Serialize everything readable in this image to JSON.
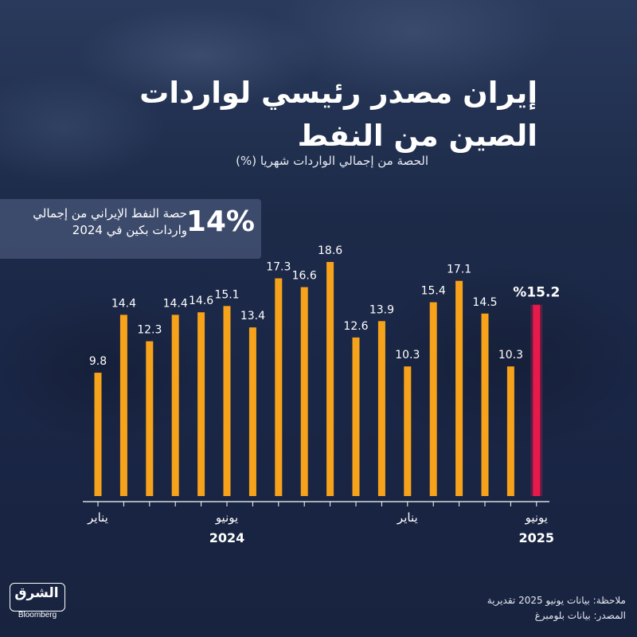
{
  "title_line1": "إيران مصدر رئيسي لواردات",
  "title_line2": "الصين من النفط",
  "subtitle": "الحصة من إجمالي الواردات شهريا (%)",
  "callout": {
    "value": "14%",
    "text_line1": "حصة النفط الإيراني من إجمالي",
    "text_line2": "واردات بكين في 2024"
  },
  "chart_data": {
    "type": "bar",
    "categories": [
      "2024-01",
      "2024-02",
      "2024-03",
      "2024-04",
      "2024-05",
      "2024-06",
      "2024-07",
      "2024-08",
      "2024-09",
      "2024-10",
      "2024-11",
      "2024-12",
      "2025-01",
      "2025-02",
      "2025-03",
      "2025-04",
      "2025-05",
      "2025-06"
    ],
    "values": [
      9.8,
      14.4,
      12.3,
      14.4,
      14.6,
      15.1,
      13.4,
      17.3,
      16.6,
      18.6,
      12.6,
      13.9,
      10.3,
      15.4,
      17.1,
      14.5,
      10.3,
      15.2
    ],
    "value_labels": [
      "9.8",
      "14.4",
      "12.3",
      "14.4",
      "14.6",
      "15.1",
      "13.4",
      "17.3",
      "16.6",
      "18.6",
      "12.6",
      "13.9",
      "10.3",
      "15.4",
      "17.1",
      "14.5",
      "10.3",
      "%15.2"
    ],
    "highlight_index": 17,
    "colors": {
      "bar": "#f7a21b",
      "highlight": "#e8194b"
    },
    "x_tick_labels": [
      {
        "index": 0,
        "label": "يناير"
      },
      {
        "index": 5,
        "label": "يونيو"
      },
      {
        "index": 12,
        "label": "يناير"
      },
      {
        "index": 17,
        "label": "يونيو"
      }
    ],
    "year_labels": [
      {
        "index": 5,
        "label": "2024"
      },
      {
        "index": 17,
        "label": "2025"
      }
    ],
    "ylim": [
      0,
      18.6
    ],
    "grid": false
  },
  "note": {
    "line1": "ملاحظة: بيانات يونيو 2025 تقديرية",
    "line2": "المصدر: بيانات بلومبرغ"
  },
  "logo": {
    "arabic": "الشرق",
    "english": "Bloomberg"
  }
}
